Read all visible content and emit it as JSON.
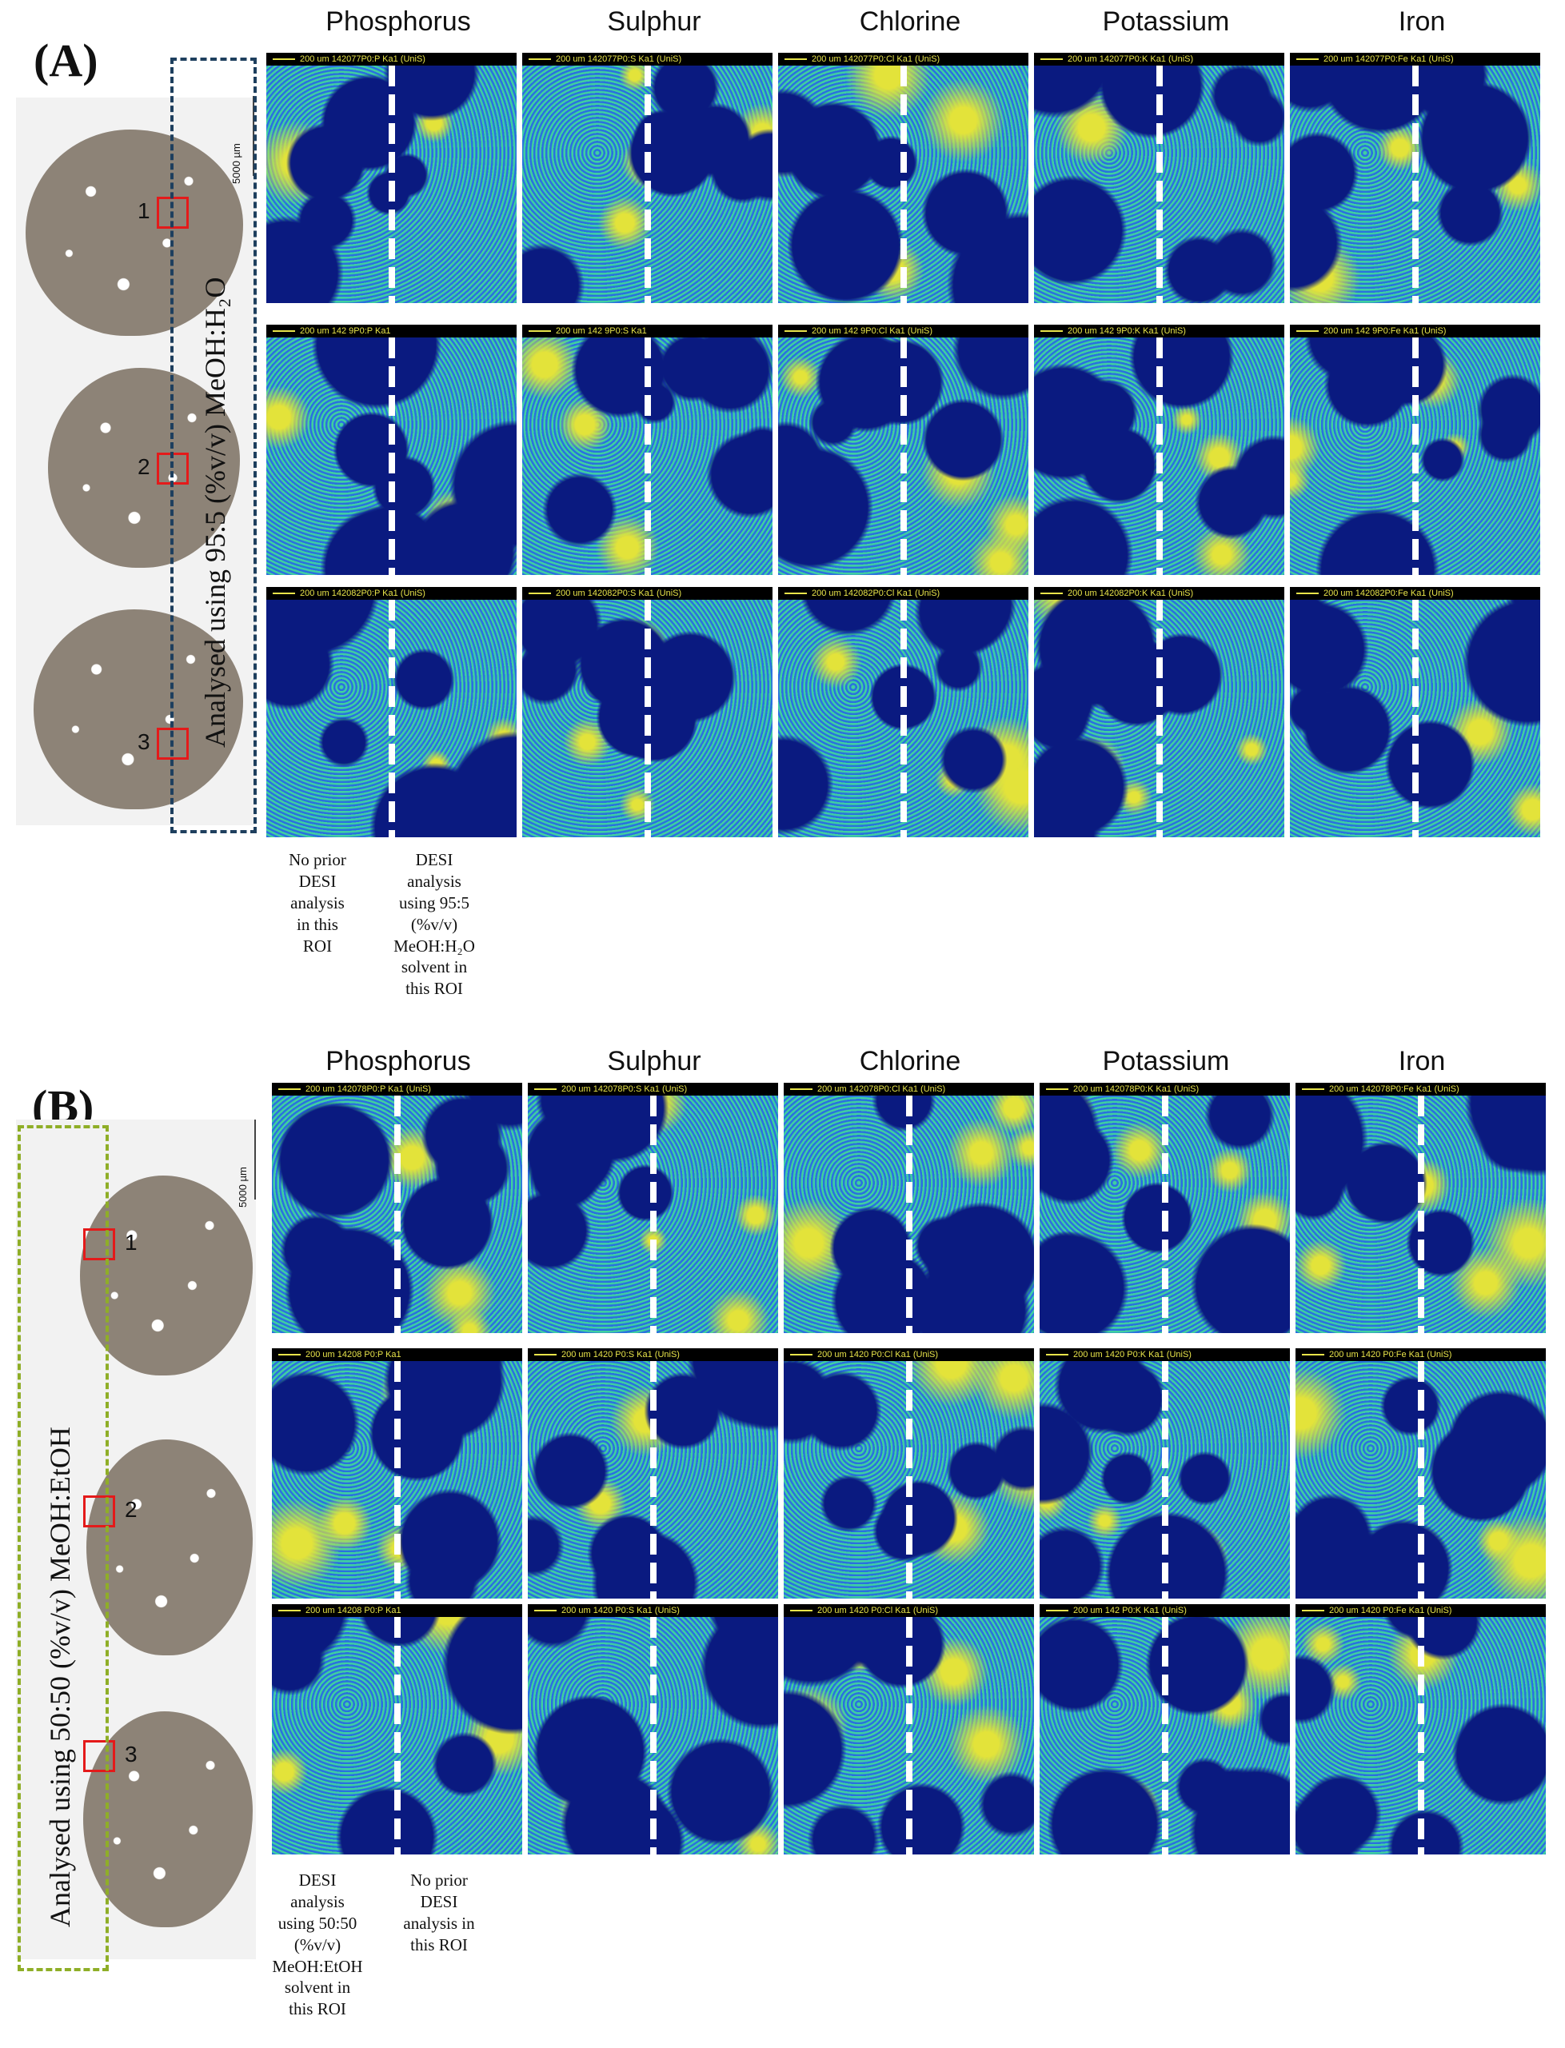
{
  "columns": [
    "Phosphorus",
    "Sulphur",
    "Chlorine",
    "Potassium",
    "Iron"
  ],
  "panel_a": {
    "label": "(A)",
    "solvent_label": "Analysed using 95:5 (%v/v) MeOH:H₂O",
    "scale_label": "5000 µm",
    "roi_numbers": [
      "1",
      "2",
      "3"
    ],
    "map_labels": [
      [
        "200 um 142077P0:P  Ka1 (UniS)",
        "200 um 142077P0:S  Ka1 (UniS)",
        "200 um 142077P0:Cl Ka1 (UniS)",
        "200 um 142077P0:K  Ka1 (UniS)",
        "200 um 142077P0:Fe Ka1 (UniS)"
      ],
      [
        "200 um 142  9P0:P  Ka1",
        "200 um 142  9P0:S  Ka1",
        "200 um 142  9P0:Cl Ka1 (UniS)",
        "200 um 142  9P0:K  Ka1 (UniS)",
        "200 um 142  9P0:Fe Ka1 (UniS)"
      ],
      [
        "200 um 142082P0:P  Ka1 (UniS)",
        "200 um 142082P0:S  Ka1 (UniS)",
        "200 um 142082P0:Cl Ka1 (UniS)",
        "200 um 142082P0:K  Ka1 (UniS)",
        "200 um 142082P0:Fe Ka1 (UniS)"
      ]
    ],
    "annot_left": [
      "No prior",
      "DESI",
      "analysis",
      "in this",
      "ROI"
    ],
    "annot_right": [
      "DESI",
      "analysis",
      "using 95:5",
      "(%v/v)",
      "MeOH:H₂O",
      "solvent in",
      "this ROI"
    ]
  },
  "panel_b": {
    "label": "(B)",
    "solvent_label": "Analysed using 50:50 (%v/v) MeOH:EtOH",
    "scale_label": "5000 µm",
    "roi_numbers": [
      "1",
      "2",
      "3"
    ],
    "map_labels": [
      [
        "200 um 142078P0:P  Ka1 (UniS)",
        "200 um 142078P0:S  Ka1 (UniS)",
        "200 um 142078P0:Cl Ka1 (UniS)",
        "200 um 142078P0:K  Ka1 (UniS)",
        "200 um 142078P0:Fe Ka1 (UniS)"
      ],
      [
        "200 um 14208  P0:P  Ka1",
        "200 um 1420  P0:S  Ka1 (UniS)",
        "200 um 1420  P0:Cl Ka1 (UniS)",
        "200 um 1420  P0:K  Ka1 (UniS)",
        "200 um 1420  P0:Fe Ka1 (UniS)"
      ],
      [
        "200 um 14208  P0:P  Ka1",
        "200 um 1420  P0:S  Ka1 (UniS)",
        "200 um 1420  P0:Cl Ka1 (UniS)",
        "200 um 142  P0:K  Ka1 (UniS)",
        "200 um 1420  P0:Fe Ka1 (UniS)"
      ]
    ],
    "annot_left": [
      "DESI",
      "analysis",
      "using 50:50",
      "(%v/v)",
      "MeOH:EtOH",
      "solvent in",
      "this ROI"
    ],
    "annot_right": [
      "No prior",
      "DESI",
      "analysis in",
      "this ROI"
    ]
  },
  "colors": {
    "map_low": "#0a1a80",
    "map_mid": "#2a6fe0",
    "map_high": "#3fd0a0",
    "map_hot": "#e3e33a",
    "dashed_a": "#1e3f5e",
    "dashed_b": "#8fae27",
    "roi_box": "#e41a1a"
  }
}
